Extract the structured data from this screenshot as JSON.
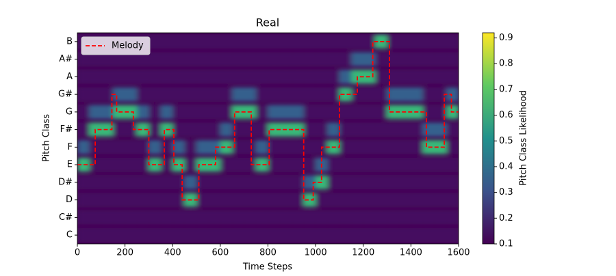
{
  "chart_data": {
    "type": "heatmap",
    "title": "Real",
    "x_label": "Time Steps",
    "y_label": "Pitch Class",
    "colorbar_label": "Pitch Class Likelihood",
    "colormap": "viridis",
    "y_categories": [
      "C",
      "C#",
      "D",
      "D#",
      "E",
      "F",
      "F#",
      "G",
      "G#",
      "A",
      "A#",
      "B"
    ],
    "xlim": [
      0,
      1600
    ],
    "xticks": [
      0,
      200,
      400,
      600,
      800,
      1000,
      1200,
      1400,
      1600
    ],
    "clim": [
      0.1,
      0.92
    ],
    "cticks": [
      0.1,
      0.2,
      0.3,
      0.4,
      0.5,
      0.6,
      0.7,
      0.8,
      0.9
    ],
    "x_edges": [
      0,
      50,
      100,
      150,
      200,
      250,
      300,
      350,
      400,
      450,
      500,
      550,
      600,
      650,
      700,
      750,
      800,
      850,
      900,
      950,
      1000,
      1050,
      1100,
      1150,
      1200,
      1250,
      1300,
      1350,
      1400,
      1450,
      1500,
      1550,
      1600
    ],
    "z": [
      [
        0.13,
        0.13,
        0.13,
        0.13,
        0.13,
        0.13,
        0.13,
        0.13,
        0.13,
        0.13,
        0.13,
        0.13,
        0.13,
        0.13,
        0.13,
        0.13,
        0.13,
        0.13,
        0.13,
        0.13,
        0.13,
        0.13,
        0.13,
        0.13,
        0.13,
        0.13,
        0.13,
        0.13,
        0.13,
        0.13,
        0.13,
        0.13
      ],
      [
        0.13,
        0.13,
        0.13,
        0.13,
        0.13,
        0.13,
        0.13,
        0.13,
        0.13,
        0.13,
        0.13,
        0.13,
        0.13,
        0.13,
        0.13,
        0.13,
        0.13,
        0.13,
        0.13,
        0.13,
        0.13,
        0.13,
        0.13,
        0.13,
        0.13,
        0.13,
        0.13,
        0.13,
        0.13,
        0.13,
        0.13,
        0.13
      ],
      [
        0.13,
        0.13,
        0.13,
        0.13,
        0.13,
        0.13,
        0.13,
        0.13,
        0.13,
        0.65,
        0.13,
        0.13,
        0.13,
        0.13,
        0.13,
        0.13,
        0.13,
        0.13,
        0.13,
        0.65,
        0.13,
        0.13,
        0.13,
        0.13,
        0.13,
        0.13,
        0.13,
        0.13,
        0.13,
        0.13,
        0.13,
        0.13
      ],
      [
        0.13,
        0.13,
        0.13,
        0.13,
        0.13,
        0.13,
        0.13,
        0.13,
        0.13,
        0.35,
        0.13,
        0.13,
        0.13,
        0.13,
        0.13,
        0.13,
        0.13,
        0.13,
        0.13,
        0.35,
        0.65,
        0.13,
        0.13,
        0.13,
        0.13,
        0.13,
        0.13,
        0.13,
        0.13,
        0.13,
        0.13,
        0.13
      ],
      [
        0.65,
        0.13,
        0.13,
        0.13,
        0.13,
        0.13,
        0.65,
        0.13,
        0.65,
        0.13,
        0.65,
        0.65,
        0.13,
        0.13,
        0.13,
        0.65,
        0.13,
        0.13,
        0.13,
        0.13,
        0.35,
        0.13,
        0.13,
        0.13,
        0.13,
        0.13,
        0.13,
        0.13,
        0.13,
        0.13,
        0.13,
        0.13
      ],
      [
        0.35,
        0.13,
        0.13,
        0.13,
        0.13,
        0.13,
        0.35,
        0.13,
        0.35,
        0.13,
        0.35,
        0.35,
        0.65,
        0.13,
        0.13,
        0.35,
        0.13,
        0.13,
        0.13,
        0.13,
        0.13,
        0.65,
        0.13,
        0.13,
        0.13,
        0.13,
        0.13,
        0.13,
        0.13,
        0.65,
        0.65,
        0.13
      ],
      [
        0.13,
        0.65,
        0.65,
        0.13,
        0.13,
        0.65,
        0.13,
        0.65,
        0.13,
        0.13,
        0.13,
        0.13,
        0.35,
        0.13,
        0.13,
        0.13,
        0.65,
        0.65,
        0.65,
        0.13,
        0.13,
        0.35,
        0.13,
        0.13,
        0.13,
        0.13,
        0.13,
        0.13,
        0.13,
        0.35,
        0.35,
        0.13
      ],
      [
        0.13,
        0.35,
        0.35,
        0.65,
        0.65,
        0.35,
        0.13,
        0.35,
        0.13,
        0.13,
        0.13,
        0.13,
        0.13,
        0.65,
        0.65,
        0.13,
        0.35,
        0.35,
        0.35,
        0.13,
        0.13,
        0.13,
        0.13,
        0.13,
        0.13,
        0.13,
        0.65,
        0.65,
        0.65,
        0.13,
        0.13,
        0.65
      ],
      [
        0.13,
        0.13,
        0.13,
        0.35,
        0.35,
        0.13,
        0.13,
        0.13,
        0.13,
        0.13,
        0.13,
        0.13,
        0.13,
        0.35,
        0.35,
        0.13,
        0.13,
        0.13,
        0.13,
        0.13,
        0.13,
        0.13,
        0.65,
        0.13,
        0.13,
        0.13,
        0.35,
        0.35,
        0.35,
        0.13,
        0.13,
        0.35
      ],
      [
        0.13,
        0.13,
        0.13,
        0.13,
        0.13,
        0.13,
        0.13,
        0.13,
        0.13,
        0.13,
        0.13,
        0.13,
        0.13,
        0.13,
        0.13,
        0.13,
        0.13,
        0.13,
        0.13,
        0.13,
        0.13,
        0.13,
        0.35,
        0.65,
        0.65,
        0.13,
        0.13,
        0.13,
        0.13,
        0.13,
        0.13,
        0.13
      ],
      [
        0.13,
        0.13,
        0.13,
        0.13,
        0.13,
        0.13,
        0.13,
        0.13,
        0.13,
        0.13,
        0.13,
        0.13,
        0.13,
        0.13,
        0.13,
        0.13,
        0.13,
        0.13,
        0.13,
        0.13,
        0.13,
        0.13,
        0.13,
        0.35,
        0.35,
        0.13,
        0.13,
        0.13,
        0.13,
        0.13,
        0.13,
        0.13
      ],
      [
        0.13,
        0.13,
        0.13,
        0.13,
        0.13,
        0.13,
        0.13,
        0.13,
        0.13,
        0.13,
        0.13,
        0.13,
        0.13,
        0.13,
        0.13,
        0.13,
        0.13,
        0.13,
        0.13,
        0.13,
        0.13,
        0.13,
        0.13,
        0.13,
        0.13,
        0.65,
        0.13,
        0.13,
        0.13,
        0.13,
        0.13,
        0.13
      ]
    ],
    "melody": {
      "name": "Melody",
      "color": "#ff0000",
      "x": [
        0,
        75,
        145,
        165,
        235,
        300,
        365,
        405,
        440,
        510,
        580,
        660,
        730,
        805,
        950,
        990,
        1025,
        1100,
        1175,
        1240,
        1310,
        1465,
        1540,
        1570,
        1600
      ],
      "values": [
        4,
        6,
        8,
        7,
        6,
        4,
        6,
        4,
        2,
        4,
        5,
        7,
        4,
        6,
        2,
        3,
        5,
        8,
        9,
        11,
        7,
        5,
        8,
        7,
        7
      ]
    },
    "legend": "upper left"
  }
}
